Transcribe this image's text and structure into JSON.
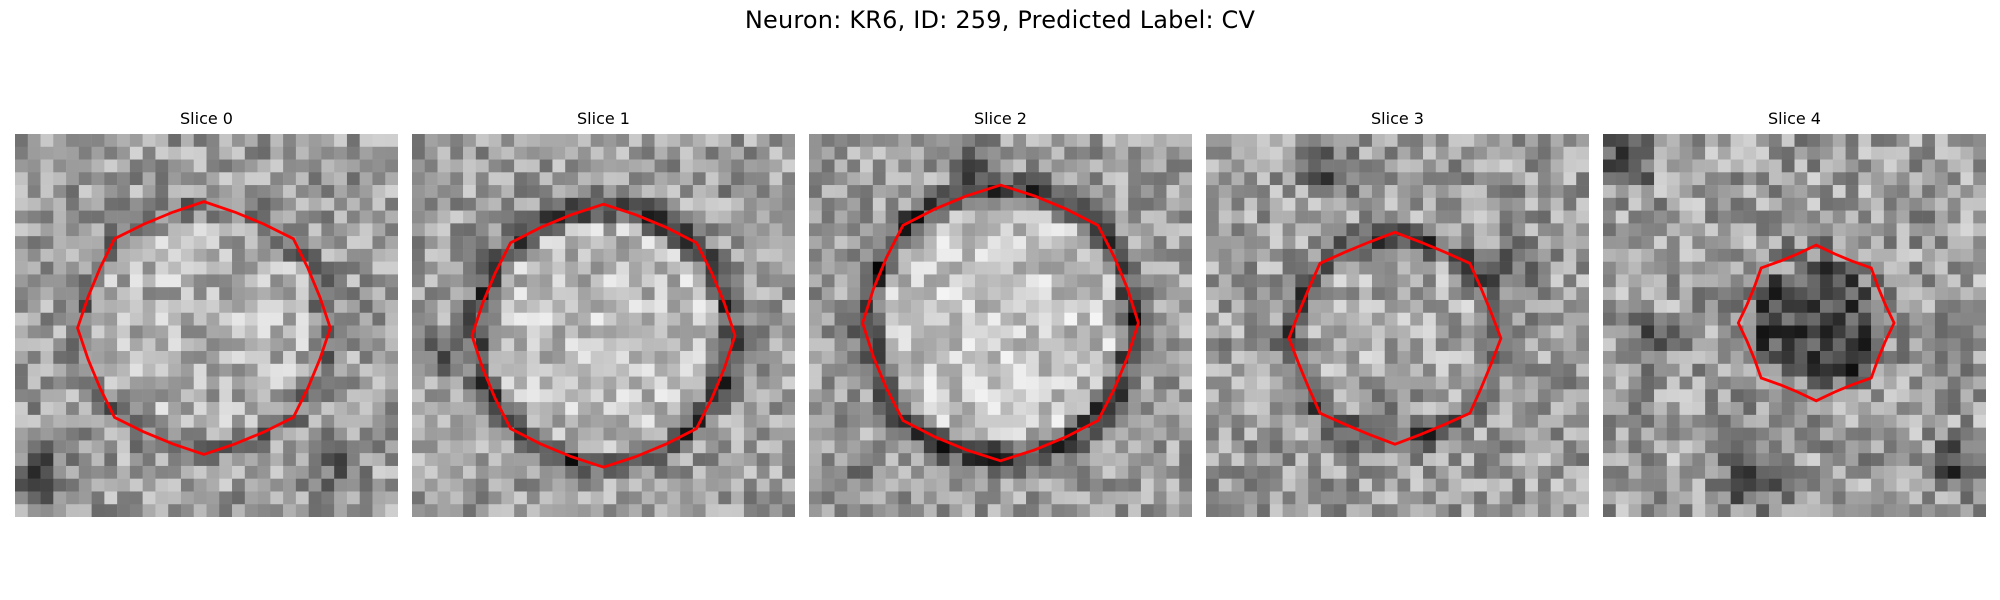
{
  "figure": {
    "title": "Neuron: KR6, ID: 259, Predicted Label: CV"
  },
  "contour_color": "#ff0000",
  "colormap": "grayscale",
  "panels": [
    {
      "title": "Slice 0"
    },
    {
      "title": "Slice 1"
    },
    {
      "title": "Slice 2"
    },
    {
      "title": "Slice 3"
    },
    {
      "title": "Slice 4"
    }
  ]
}
